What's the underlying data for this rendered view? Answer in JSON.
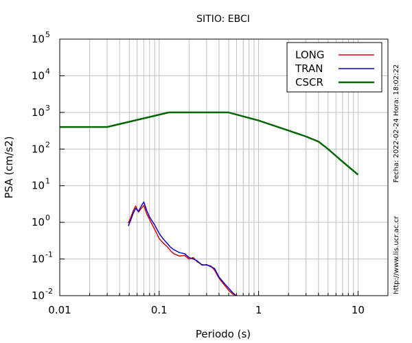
{
  "chart_data": {
    "type": "line",
    "title": "SITIO: EBCI",
    "xlabel": "Periodo (s)",
    "ylabel": "PSA (cm/s2)",
    "x_scale": "log",
    "y_scale": "log",
    "xlim": [
      0.01,
      20
    ],
    "ylim": [
      0.01,
      100000
    ],
    "grid": true,
    "legend_position": "top-right",
    "x_ticks": [
      {
        "value": 0.01,
        "label": "0.01"
      },
      {
        "value": 0.1,
        "label": "0.1"
      },
      {
        "value": 1,
        "label": "1"
      },
      {
        "value": 10,
        "label": "10"
      }
    ],
    "y_ticks": [
      {
        "value": 0.01,
        "base": "10",
        "exp": "-2"
      },
      {
        "value": 0.1,
        "base": "10",
        "exp": "-1"
      },
      {
        "value": 1,
        "base": "10",
        "exp": "0"
      },
      {
        "value": 10,
        "base": "10",
        "exp": "1"
      },
      {
        "value": 100,
        "base": "10",
        "exp": "2"
      },
      {
        "value": 1000,
        "base": "10",
        "exp": "3"
      },
      {
        "value": 10000,
        "base": "10",
        "exp": "4"
      },
      {
        "value": 100000,
        "base": "10",
        "exp": "5"
      }
    ],
    "series": [
      {
        "name": "LONG",
        "color": "#dd0000",
        "x": [
          0.049,
          0.052,
          0.055,
          0.058,
          0.062,
          0.066,
          0.07,
          0.075,
          0.08,
          0.09,
          0.1,
          0.11,
          0.12,
          0.13,
          0.14,
          0.16,
          0.18,
          0.2,
          0.22,
          0.24,
          0.27,
          0.3,
          0.33,
          0.36,
          0.4,
          0.45,
          0.5,
          0.55,
          0.6
        ],
        "y": [
          0.95,
          1.4,
          2.1,
          2.8,
          1.9,
          2.4,
          2.9,
          1.7,
          1.2,
          0.65,
          0.36,
          0.27,
          0.22,
          0.17,
          0.14,
          0.12,
          0.125,
          0.1,
          0.11,
          0.085,
          0.07,
          0.068,
          0.065,
          0.05,
          0.03,
          0.02,
          0.014,
          0.011,
          0.01
        ]
      },
      {
        "name": "TRAN",
        "color": "#0000cc",
        "x": [
          0.049,
          0.052,
          0.055,
          0.058,
          0.062,
          0.066,
          0.07,
          0.075,
          0.08,
          0.09,
          0.1,
          0.11,
          0.12,
          0.13,
          0.14,
          0.16,
          0.18,
          0.2,
          0.22,
          0.24,
          0.27,
          0.3,
          0.33,
          0.36,
          0.4,
          0.45,
          0.5,
          0.55,
          0.6
        ],
        "y": [
          0.8,
          1.2,
          1.8,
          2.4,
          2.0,
          2.8,
          3.6,
          2.1,
          1.4,
          0.85,
          0.5,
          0.35,
          0.27,
          0.21,
          0.18,
          0.15,
          0.14,
          0.11,
          0.1,
          0.09,
          0.068,
          0.07,
          0.062,
          0.055,
          0.032,
          0.022,
          0.016,
          0.012,
          0.01
        ]
      },
      {
        "name": "CSCR",
        "color": "#006600",
        "x": [
          0.01,
          0.03,
          0.125,
          0.5,
          1,
          2,
          3,
          4,
          5,
          7,
          10
        ],
        "y": [
          400,
          400,
          1000,
          1000,
          600,
          320,
          220,
          160,
          100,
          45,
          20
        ]
      }
    ]
  },
  "side_note": "Fecha: 2022-02-24  Hora: 18:02:22",
  "side_url": "http://www.lis.ucr.ac.cr"
}
